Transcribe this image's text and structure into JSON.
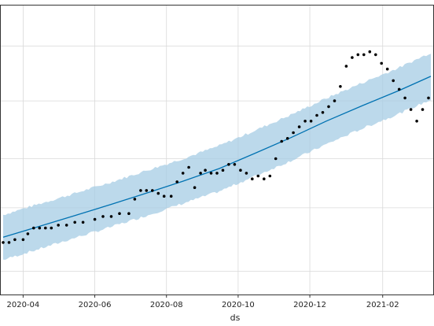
{
  "chart_data": {
    "type": "line",
    "title": "",
    "xlabel": "ds",
    "ylabel": "",
    "x_tick_labels": [
      "2020-04",
      "2020-06",
      "2020-08",
      "2020-10",
      "2020-12",
      "2021-02"
    ],
    "x_tick_dates": [
      "2020-04-01",
      "2020-06-01",
      "2020-08-01",
      "2020-10-01",
      "2020-12-01",
      "2021-02-01"
    ],
    "xlim": [
      "2020-03-13",
      "2021-03-16"
    ],
    "ylim": [
      0,
      100
    ],
    "y_gridlines": [
      8,
      30,
      47,
      67,
      86
    ],
    "grid": true,
    "legend": "none",
    "colors": {
      "trend": "#0072b2",
      "interval": "#a6cce4",
      "points": "#000000",
      "grid": "#d9d9d9"
    },
    "series": [
      {
        "kind": "trend",
        "x": [
          "2020-03-15",
          "2020-04-15",
          "2020-05-15",
          "2020-06-15",
          "2020-07-15",
          "2020-08-15",
          "2020-09-15",
          "2020-10-15",
          "2020-11-15",
          "2020-12-15",
          "2021-01-15",
          "2021-02-15",
          "2021-03-14"
        ],
        "y": [
          19.8,
          23.6,
          27.3,
          31.2,
          35.1,
          39.2,
          43.6,
          48.8,
          54.3,
          60.0,
          65.4,
          70.6,
          75.5
        ]
      },
      {
        "kind": "interval",
        "x": [
          "2020-03-15",
          "2020-04-15",
          "2020-05-15",
          "2020-06-15",
          "2020-07-15",
          "2020-08-15",
          "2020-09-15",
          "2020-10-15",
          "2020-11-15",
          "2020-12-15",
          "2021-01-15",
          "2021-02-15",
          "2021-03-14"
        ],
        "lower": [
          12.0,
          15.8,
          19.6,
          23.4,
          27.3,
          31.5,
          35.7,
          40.9,
          46.3,
          52.0,
          57.5,
          62.6,
          67.4
        ],
        "upper": [
          27.6,
          31.4,
          35.0,
          38.9,
          42.9,
          47.0,
          51.5,
          56.7,
          62.2,
          67.9,
          73.3,
          78.5,
          83.7
        ]
      },
      {
        "kind": "observed",
        "x": [
          "2020-03-15",
          "2020-03-20",
          "2020-03-25",
          "2020-04-01",
          "2020-04-05",
          "2020-04-10",
          "2020-04-15",
          "2020-04-20",
          "2020-04-25",
          "2020-05-01",
          "2020-05-08",
          "2020-05-15",
          "2020-05-22",
          "2020-06-01",
          "2020-06-08",
          "2020-06-15",
          "2020-06-22",
          "2020-06-30",
          "2020-07-05",
          "2020-07-10",
          "2020-07-15",
          "2020-07-20",
          "2020-07-25",
          "2020-07-30",
          "2020-08-05",
          "2020-08-10",
          "2020-08-15",
          "2020-08-20",
          "2020-08-25",
          "2020-08-30",
          "2020-09-03",
          "2020-09-08",
          "2020-09-13",
          "2020-09-18",
          "2020-09-23",
          "2020-09-28",
          "2020-10-03",
          "2020-10-08",
          "2020-10-13",
          "2020-10-18",
          "2020-10-23",
          "2020-10-28",
          "2020-11-02",
          "2020-11-07",
          "2020-11-12",
          "2020-11-17",
          "2020-11-22",
          "2020-11-27",
          "2020-12-02",
          "2020-12-07",
          "2020-12-12",
          "2020-12-17",
          "2020-12-22",
          "2020-12-27",
          "2021-01-01",
          "2021-01-06",
          "2021-01-11",
          "2021-01-16",
          "2021-01-21",
          "2021-01-26",
          "2021-01-31",
          "2021-02-05",
          "2021-02-10",
          "2021-02-15",
          "2021-02-20",
          "2021-02-25",
          "2021-03-02",
          "2021-03-07",
          "2021-03-12"
        ],
        "y": [
          18,
          18,
          19,
          19,
          21,
          23,
          23,
          23,
          23,
          24,
          24,
          25,
          25,
          26,
          27,
          27,
          28,
          28,
          33,
          36,
          36,
          36,
          35,
          34,
          34,
          39,
          42,
          44,
          37,
          42,
          43,
          42,
          42,
          43,
          45,
          45,
          43,
          42,
          40,
          41,
          40,
          41,
          47,
          53,
          54,
          56,
          58,
          60,
          60,
          62,
          63,
          65,
          67,
          72,
          79,
          82,
          83,
          83,
          84,
          83,
          80,
          78,
          74,
          71,
          68,
          64,
          60,
          64,
          68
        ]
      }
    ]
  }
}
